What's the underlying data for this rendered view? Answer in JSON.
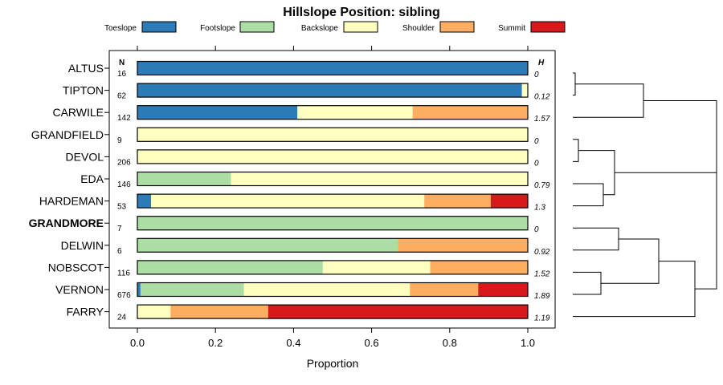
{
  "chart_data": {
    "type": "bar",
    "stacked": true,
    "orientation": "horizontal",
    "title": "Hillslope Position: sibling",
    "xlabel": "Proportion",
    "ylabel": "",
    "xlim": [
      0,
      1
    ],
    "xticks": [
      "0.0",
      "0.2",
      "0.4",
      "0.6",
      "0.8",
      "1.0"
    ],
    "n_header": "N",
    "h_header": "H",
    "legend": [
      {
        "name": "Toeslope",
        "color": "#2C7BB6"
      },
      {
        "name": "Footslope",
        "color": "#ABDDA4"
      },
      {
        "name": "Backslope",
        "color": "#FFFFBF"
      },
      {
        "name": "Shoulder",
        "color": "#FDAE61"
      },
      {
        "name": "Summit",
        "color": "#D7191C"
      }
    ],
    "categories": [
      "ALTUS",
      "TIPTON",
      "CARWILE",
      "GRANDFIELD",
      "DEVOL",
      "EDA",
      "HARDEMAN",
      "GRANDMORE",
      "DELWIN",
      "NOBSCOT",
      "VERNON",
      "FARRY"
    ],
    "highlight": "GRANDMORE",
    "n": [
      "16",
      "62",
      "142",
      "9",
      "206",
      "146",
      "53",
      "7",
      "6",
      "116",
      "676",
      "24"
    ],
    "h": [
      "0",
      "0.12",
      "1.57",
      "0",
      "0",
      "0.79",
      "1.3",
      "0",
      "0.92",
      "1.52",
      "1.89",
      "1.19"
    ],
    "series": [
      {
        "name": "Toeslope",
        "values": [
          1.0,
          0.985,
          0.41,
          0.0,
          0.0,
          0.0,
          0.035,
          0.0,
          0.0,
          0.0,
          0.008,
          0.0
        ]
      },
      {
        "name": "Footslope",
        "values": [
          0.0,
          0.0,
          0.0,
          0.0,
          0.0,
          0.24,
          0.0,
          1.0,
          0.667,
          0.475,
          0.265,
          0.0
        ]
      },
      {
        "name": "Backslope",
        "values": [
          0.0,
          0.015,
          0.295,
          1.0,
          1.0,
          0.76,
          0.7,
          0.0,
          0.0,
          0.275,
          0.425,
          0.085
        ]
      },
      {
        "name": "Shoulder",
        "values": [
          0.0,
          0.0,
          0.295,
          0.0,
          0.0,
          0.0,
          0.17,
          0.0,
          0.333,
          0.25,
          0.175,
          0.25
        ]
      },
      {
        "name": "Summit",
        "values": [
          0.0,
          0.0,
          0.0,
          0.0,
          0.0,
          0.0,
          0.095,
          0.0,
          0.0,
          0.0,
          0.127,
          0.665
        ]
      }
    ]
  }
}
